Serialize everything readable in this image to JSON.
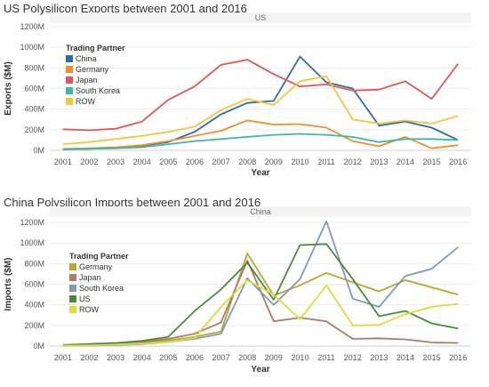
{
  "chart_data": [
    {
      "type": "line",
      "title": "US Polysilicon Exports between 2001 and 2016",
      "panel": "US",
      "xlabel": "Year",
      "ylabel": "Exports ($M)",
      "ylim": [
        0,
        1200
      ],
      "yticks": [
        "0M",
        "200M",
        "400M",
        "600M",
        "800M",
        "1000M",
        "1200M"
      ],
      "legend_title": "Trading Partner",
      "legend_position": "top-left",
      "x": [
        2001,
        2002,
        2003,
        2004,
        2005,
        2006,
        2007,
        2008,
        2009,
        2010,
        2011,
        2012,
        2013,
        2014,
        2015,
        2016
      ],
      "series": [
        {
          "name": "China",
          "color": "#2e6e9e",
          "values": [
            10,
            15,
            25,
            45,
            80,
            180,
            350,
            460,
            480,
            910,
            660,
            600,
            240,
            280,
            220,
            100
          ]
        },
        {
          "name": "Germany",
          "color": "#f28e2b",
          "values": [
            15,
            20,
            30,
            50,
            90,
            140,
            190,
            290,
            250,
            255,
            220,
            90,
            40,
            130,
            20,
            50
          ]
        },
        {
          "name": "Japan",
          "color": "#e15759",
          "values": [
            205,
            195,
            210,
            280,
            490,
            620,
            830,
            880,
            740,
            620,
            640,
            580,
            590,
            670,
            500,
            840
          ]
        },
        {
          "name": "South Korea",
          "color": "#3eb5ad",
          "values": [
            10,
            15,
            20,
            30,
            60,
            90,
            110,
            130,
            150,
            160,
            150,
            130,
            80,
            110,
            110,
            100
          ]
        },
        {
          "name": "ROW",
          "color": "#f5c540",
          "values": [
            60,
            80,
            110,
            140,
            180,
            230,
            390,
            500,
            440,
            670,
            720,
            300,
            260,
            290,
            260,
            335
          ]
        }
      ]
    },
    {
      "type": "line",
      "title": "China Polysilicon Imports between 2001 and 2016",
      "panel": "China",
      "xlabel": "Year",
      "ylabel": "Imports ($M)",
      "ylim": [
        0,
        1200
      ],
      "yticks": [
        "0M",
        "200M",
        "400M",
        "600M",
        "800M",
        "1000M",
        "1200M"
      ],
      "legend_title": "Trading Partner",
      "legend_position": "middle-left",
      "x": [
        2001,
        2002,
        2003,
        2004,
        2005,
        2006,
        2007,
        2008,
        2009,
        2010,
        2011,
        2012,
        2013,
        2014,
        2015,
        2016
      ],
      "series": [
        {
          "name": "Germany",
          "color": "#b5a82e",
          "values": [
            5,
            10,
            15,
            30,
            55,
            90,
            140,
            900,
            490,
            590,
            710,
            620,
            530,
            640,
            570,
            500
          ]
        },
        {
          "name": "Japan",
          "color": "#b07a67",
          "values": [
            5,
            10,
            20,
            40,
            70,
            120,
            230,
            830,
            240,
            275,
            240,
            70,
            75,
            65,
            35,
            30
          ]
        },
        {
          "name": "South Korea",
          "color": "#7f9bb3",
          "values": [
            2,
            5,
            10,
            20,
            40,
            70,
            120,
            660,
            400,
            650,
            1210,
            460,
            380,
            680,
            750,
            960
          ]
        },
        {
          "name": "US",
          "color": "#4a8a3f",
          "values": [
            10,
            20,
            30,
            50,
            90,
            340,
            550,
            810,
            450,
            980,
            990,
            650,
            290,
            340,
            220,
            170
          ]
        },
        {
          "name": "ROW",
          "color": "#d9de3a",
          "values": [
            3,
            8,
            15,
            25,
            40,
            80,
            380,
            640,
            500,
            260,
            590,
            200,
            205,
            310,
            380,
            410
          ]
        }
      ]
    }
  ]
}
